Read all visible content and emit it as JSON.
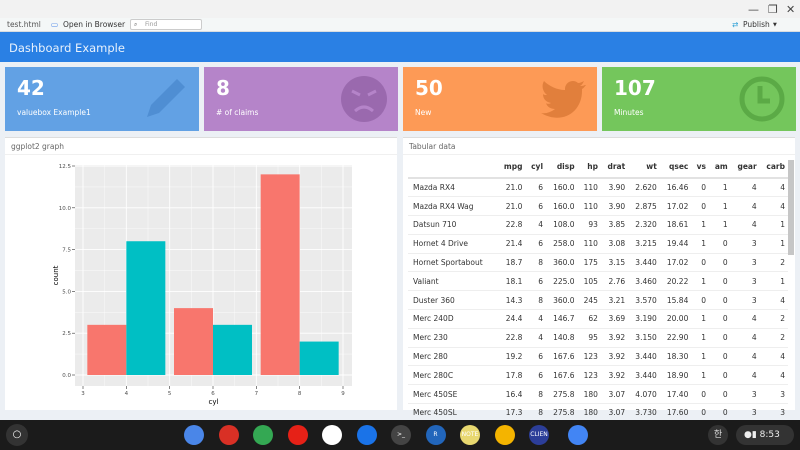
{
  "window": {
    "minimize": "—",
    "restore": "❐",
    "close": "✕"
  },
  "toolbar": {
    "file": "test.html",
    "open_browser": "Open in Browser",
    "find_placeholder": "Find",
    "publish": "Publish"
  },
  "header": {
    "title": "Dashboard Example"
  },
  "valueboxes": [
    {
      "value": "42",
      "label": "valuebox Example1",
      "icon": "pencil-icon",
      "color": "#62a1e4"
    },
    {
      "value": "8",
      "label": "# of claims",
      "icon": "angry-face-icon",
      "color": "#b584c9"
    },
    {
      "value": "50",
      "label": "New",
      "icon": "twitter-icon",
      "color": "#fd9a56"
    },
    {
      "value": "107",
      "label": "Minutes",
      "icon": "clock-icon",
      "color": "#74c65c"
    }
  ],
  "graph_panel": {
    "title": "ggplot2 graph"
  },
  "chart_data": {
    "type": "bar",
    "xlabel": "cyl",
    "ylabel": "count",
    "xlim": [
      3,
      9
    ],
    "ylim": [
      0,
      12.5
    ],
    "xticks": [
      "3",
      "4",
      "5",
      "6",
      "7",
      "8",
      "9"
    ],
    "yticks": [
      "0.0",
      "2.5",
      "5.0",
      "7.5",
      "10.0",
      "12.5"
    ],
    "grid": true,
    "bars": [
      {
        "xmin": 3.1,
        "xmax": 4.0,
        "count": 3,
        "color": "#f8766d"
      },
      {
        "xmin": 4.0,
        "xmax": 4.9,
        "count": 8,
        "color": "#00bfc4"
      },
      {
        "xmin": 5.1,
        "xmax": 6.0,
        "count": 4,
        "color": "#f8766d"
      },
      {
        "xmin": 6.0,
        "xmax": 6.9,
        "count": 3,
        "color": "#00bfc4"
      },
      {
        "xmin": 7.1,
        "xmax": 8.0,
        "count": 12,
        "color": "#f8766d"
      },
      {
        "xmin": 8.0,
        "xmax": 8.9,
        "count": 2,
        "color": "#00bfc4"
      }
    ]
  },
  "table_panel": {
    "title": "Tabular data"
  },
  "table": {
    "columns": [
      "",
      "mpg",
      "cyl",
      "disp",
      "hp",
      "drat",
      "wt",
      "qsec",
      "vs",
      "am",
      "gear",
      "carb"
    ],
    "rows": [
      [
        "Mazda RX4",
        "21.0",
        "6",
        "160.0",
        "110",
        "3.90",
        "2.620",
        "16.46",
        "0",
        "1",
        "4",
        "4"
      ],
      [
        "Mazda RX4 Wag",
        "21.0",
        "6",
        "160.0",
        "110",
        "3.90",
        "2.875",
        "17.02",
        "0",
        "1",
        "4",
        "4"
      ],
      [
        "Datsun 710",
        "22.8",
        "4",
        "108.0",
        "93",
        "3.85",
        "2.320",
        "18.61",
        "1",
        "1",
        "4",
        "1"
      ],
      [
        "Hornet 4 Drive",
        "21.4",
        "6",
        "258.0",
        "110",
        "3.08",
        "3.215",
        "19.44",
        "1",
        "0",
        "3",
        "1"
      ],
      [
        "Hornet Sportabout",
        "18.7",
        "8",
        "360.0",
        "175",
        "3.15",
        "3.440",
        "17.02",
        "0",
        "0",
        "3",
        "2"
      ],
      [
        "Valiant",
        "18.1",
        "6",
        "225.0",
        "105",
        "2.76",
        "3.460",
        "20.22",
        "1",
        "0",
        "3",
        "1"
      ],
      [
        "Duster 360",
        "14.3",
        "8",
        "360.0",
        "245",
        "3.21",
        "3.570",
        "15.84",
        "0",
        "0",
        "3",
        "4"
      ],
      [
        "Merc 240D",
        "24.4",
        "4",
        "146.7",
        "62",
        "3.69",
        "3.190",
        "20.00",
        "1",
        "0",
        "4",
        "2"
      ],
      [
        "Merc 230",
        "22.8",
        "4",
        "140.8",
        "95",
        "3.92",
        "3.150",
        "22.90",
        "1",
        "0",
        "4",
        "2"
      ],
      [
        "Merc 280",
        "19.2",
        "6",
        "167.6",
        "123",
        "3.92",
        "3.440",
        "18.30",
        "1",
        "0",
        "4",
        "4"
      ],
      [
        "Merc 280C",
        "17.8",
        "6",
        "167.6",
        "123",
        "3.92",
        "3.440",
        "18.90",
        "1",
        "0",
        "4",
        "4"
      ],
      [
        "Merc 450SE",
        "16.4",
        "8",
        "275.8",
        "180",
        "3.07",
        "4.070",
        "17.40",
        "0",
        "0",
        "3",
        "3"
      ],
      [
        "Merc 450SL",
        "17.3",
        "8",
        "275.8",
        "180",
        "3.07",
        "3.730",
        "17.60",
        "0",
        "0",
        "3",
        "3"
      ]
    ]
  },
  "taskbar": {
    "apps": [
      {
        "name": "docs",
        "color": "#4a86e8"
      },
      {
        "name": "gmail",
        "color": "#d93025"
      },
      {
        "name": "chrome",
        "color": "#34a853"
      },
      {
        "name": "youtube",
        "color": "#e62117"
      },
      {
        "name": "play-store",
        "color": "#ffffff"
      },
      {
        "name": "messages",
        "color": "#1a73e8"
      },
      {
        "name": "terminal",
        "color": "#444444",
        "label": ">_"
      },
      {
        "name": "r",
        "color": "#2266bb",
        "label": "R"
      },
      {
        "name": "notes",
        "color": "#e8d870",
        "label": "NOTE"
      },
      {
        "name": "keep",
        "color": "#f4b400"
      },
      {
        "name": "clien",
        "color": "#2c3e99",
        "label": "CLIEN"
      },
      {
        "name": "settings",
        "color": "#4285f4"
      }
    ],
    "ime": "한",
    "time": "8:53"
  }
}
